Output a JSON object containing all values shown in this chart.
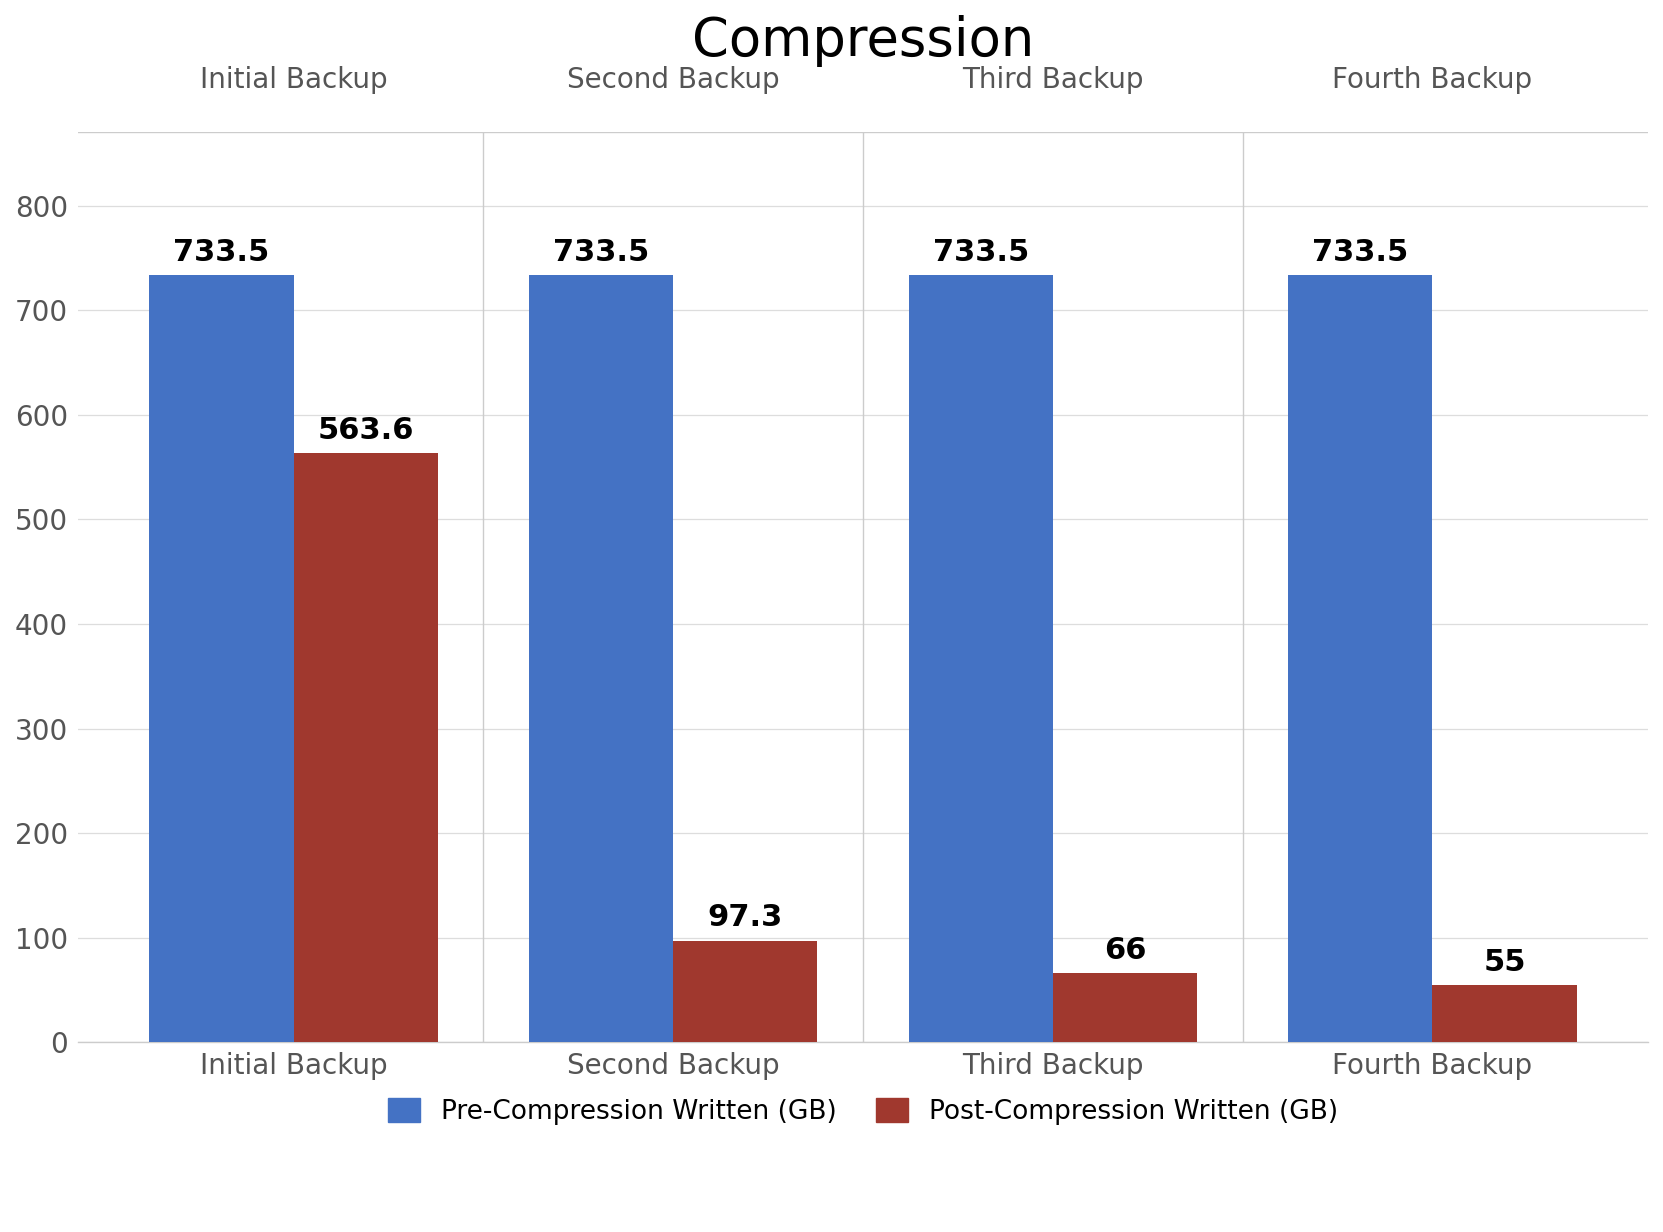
{
  "title": "Compression",
  "categories": [
    "Initial Backup",
    "Second Backup",
    "Third Backup",
    "Fourth Backup"
  ],
  "pre_compression": [
    733.5,
    733.5,
    733.5,
    733.5
  ],
  "post_compression": [
    563.6,
    97.3,
    66,
    55
  ],
  "pre_color": "#4472C4",
  "post_color": "#A0382E",
  "background_color": "#FFFFFF",
  "ylim": [
    0,
    870
  ],
  "yticks": [
    0,
    100,
    200,
    300,
    400,
    500,
    600,
    700,
    800
  ],
  "legend_pre": "Pre-Compression Written (GB)",
  "legend_post": "Post-Compression Written (GB)",
  "title_fontsize": 38,
  "tick_fontsize": 20,
  "legend_fontsize": 19,
  "annotation_fontsize": 22,
  "group_label_fontsize": 20,
  "bar_width": 0.38,
  "grid_color": "#DDDDDD",
  "divider_color": "#CCCCCC",
  "top_line_color": "#CCCCCC",
  "label_color": "#555555"
}
